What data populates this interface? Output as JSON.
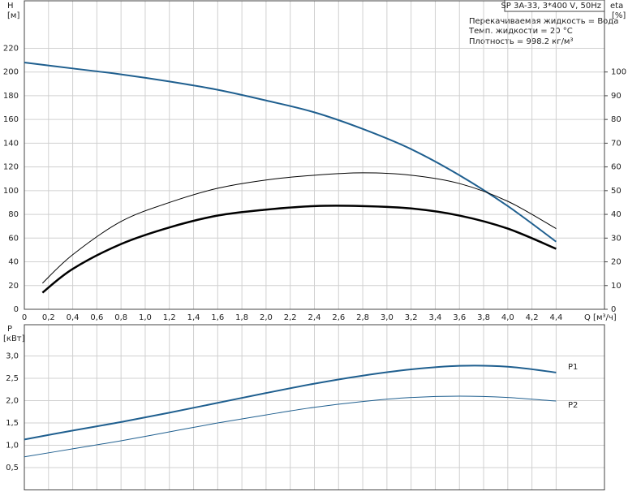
{
  "chart_data": [
    {
      "type": "line",
      "y_label": "H",
      "y_unit": "[м]",
      "y2_label": "eta",
      "y2_unit": "[%]",
      "x_label": "Q [м³/ч]",
      "annotations": [
        "SP 3A-33, 3*400 V, 50Hz",
        "Перекачиваемая жидкость = Вода",
        "Темп. жидкости = 20 °C",
        "Плотность = 998.2 кг/м³"
      ],
      "xlim": [
        0,
        4.8
      ],
      "xticks": [
        0,
        {
          "value": 0.2,
          "label": "0,2"
        },
        {
          "value": 0.4,
          "label": "0,4"
        },
        {
          "value": 0.6,
          "label": "0,6"
        },
        {
          "value": 0.8,
          "label": "0,8"
        },
        {
          "value": 1.0,
          "label": "1,0"
        },
        {
          "value": 1.2,
          "label": "1,2"
        },
        {
          "value": 1.4,
          "label": "1,4"
        },
        {
          "value": 1.6,
          "label": "1,6"
        },
        {
          "value": 1.8,
          "label": "1,8"
        },
        {
          "value": 2.0,
          "label": "2,0"
        },
        {
          "value": 2.2,
          "label": "2,2"
        },
        {
          "value": 2.4,
          "label": "2,4"
        },
        {
          "value": 2.6,
          "label": "2,6"
        },
        {
          "value": 2.8,
          "label": "2,8"
        },
        {
          "value": 3.0,
          "label": "3,0"
        },
        {
          "value": 3.2,
          "label": "3,2"
        },
        {
          "value": 3.4,
          "label": "3,4"
        },
        {
          "value": 3.6,
          "label": "3,6"
        },
        {
          "value": 3.8,
          "label": "3,8"
        },
        {
          "value": 4.0,
          "label": "4,0"
        },
        {
          "value": 4.2,
          "label": "4,2"
        },
        {
          "value": 4.4,
          "label": "4,4"
        }
      ],
      "ylim": [
        0,
        260
      ],
      "yticks": [
        0,
        20,
        40,
        60,
        80,
        100,
        120,
        140,
        160,
        180,
        200,
        220
      ],
      "y2lim": [
        0,
        130
      ],
      "y2ticks": [
        0,
        10,
        20,
        30,
        40,
        50,
        60,
        70,
        80,
        90,
        100
      ],
      "grid": true,
      "series": [
        {
          "color": "#1f5f8f",
          "x": [
            0,
            0.4,
            0.8,
            1.2,
            1.6,
            2.0,
            2.4,
            2.8,
            3.2,
            3.6,
            4.0,
            4.4
          ],
          "values": [
            208,
            203,
            198,
            192,
            185,
            176,
            166,
            152,
            135,
            113,
            87,
            57
          ]
        },
        {
          "color": "#000000",
          "axis": "y2",
          "x": [
            0.15,
            0.4,
            0.8,
            1.2,
            1.6,
            2.0,
            2.4,
            2.8,
            3.2,
            3.6,
            4.0,
            4.4
          ],
          "values": [
            11,
            23,
            37,
            45,
            51,
            54.5,
            56.5,
            57.5,
            56.5,
            53,
            45.5,
            34
          ]
        },
        {
          "color": "#000000",
          "axis": "y2",
          "x": [
            0.15,
            0.4,
            0.8,
            1.2,
            1.6,
            2.0,
            2.4,
            2.8,
            3.2,
            3.6,
            4.0,
            4.4
          ],
          "values": [
            7,
            17,
            27.5,
            34.5,
            39.5,
            42,
            43.5,
            43.5,
            42.5,
            39.5,
            34,
            25.5
          ]
        }
      ]
    },
    {
      "type": "line",
      "y_label": "P",
      "y_unit": "[кВт]",
      "xlim": [
        0,
        4.8
      ],
      "ylim": [
        0,
        3.7
      ],
      "yticks": [
        {
          "value": 0.5,
          "label": "0,5"
        },
        {
          "value": 1.0,
          "label": "1,0"
        },
        {
          "value": 1.5,
          "label": "1,5"
        },
        {
          "value": 2.0,
          "label": "2,0"
        },
        {
          "value": 2.5,
          "label": "2,5"
        },
        {
          "value": 3.0,
          "label": "3,0"
        }
      ],
      "grid": true,
      "x": [
        0,
        0.4,
        0.8,
        1.2,
        1.6,
        2.0,
        2.4,
        2.8,
        3.2,
        3.6,
        4.0,
        4.4
      ],
      "series": [
        {
          "name": "P1",
          "color": "#1f5f8f",
          "values": [
            1.13,
            1.33,
            1.52,
            1.73,
            1.95,
            2.17,
            2.38,
            2.56,
            2.7,
            2.78,
            2.76,
            2.63
          ]
        },
        {
          "name": "P2",
          "color": "#1f5f8f",
          "values": [
            0.74,
            0.92,
            1.1,
            1.3,
            1.5,
            1.68,
            1.85,
            1.98,
            2.07,
            2.1,
            2.07,
            1.99
          ]
        }
      ]
    }
  ]
}
